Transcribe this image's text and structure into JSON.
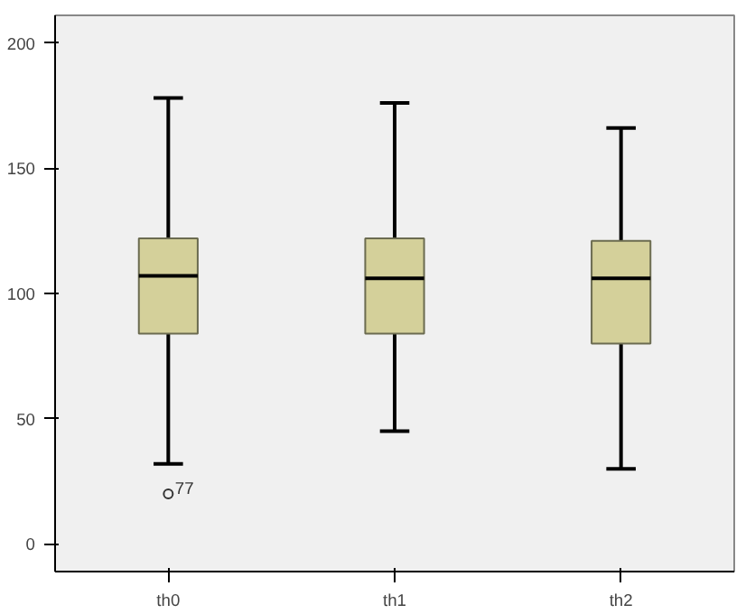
{
  "chart_data": {
    "type": "box",
    "categories": [
      "th0",
      "th1",
      "th2"
    ],
    "color": "#d4d09a",
    "boxes": [
      {
        "low": 32,
        "q1": 84,
        "median": 107,
        "q3": 122,
        "high": 178,
        "outliers": [
          20
        ]
      },
      {
        "low": 45,
        "q1": 84,
        "median": 106,
        "q3": 122,
        "high": 176
      },
      {
        "low": 30,
        "q1": 80,
        "median": 106,
        "q3": 121,
        "high": 166
      }
    ],
    "ylim": [
      -11,
      211
    ],
    "yticks": [
      0,
      50,
      100,
      150,
      200
    ],
    "grid": false,
    "annotations": [
      "77"
    ]
  }
}
